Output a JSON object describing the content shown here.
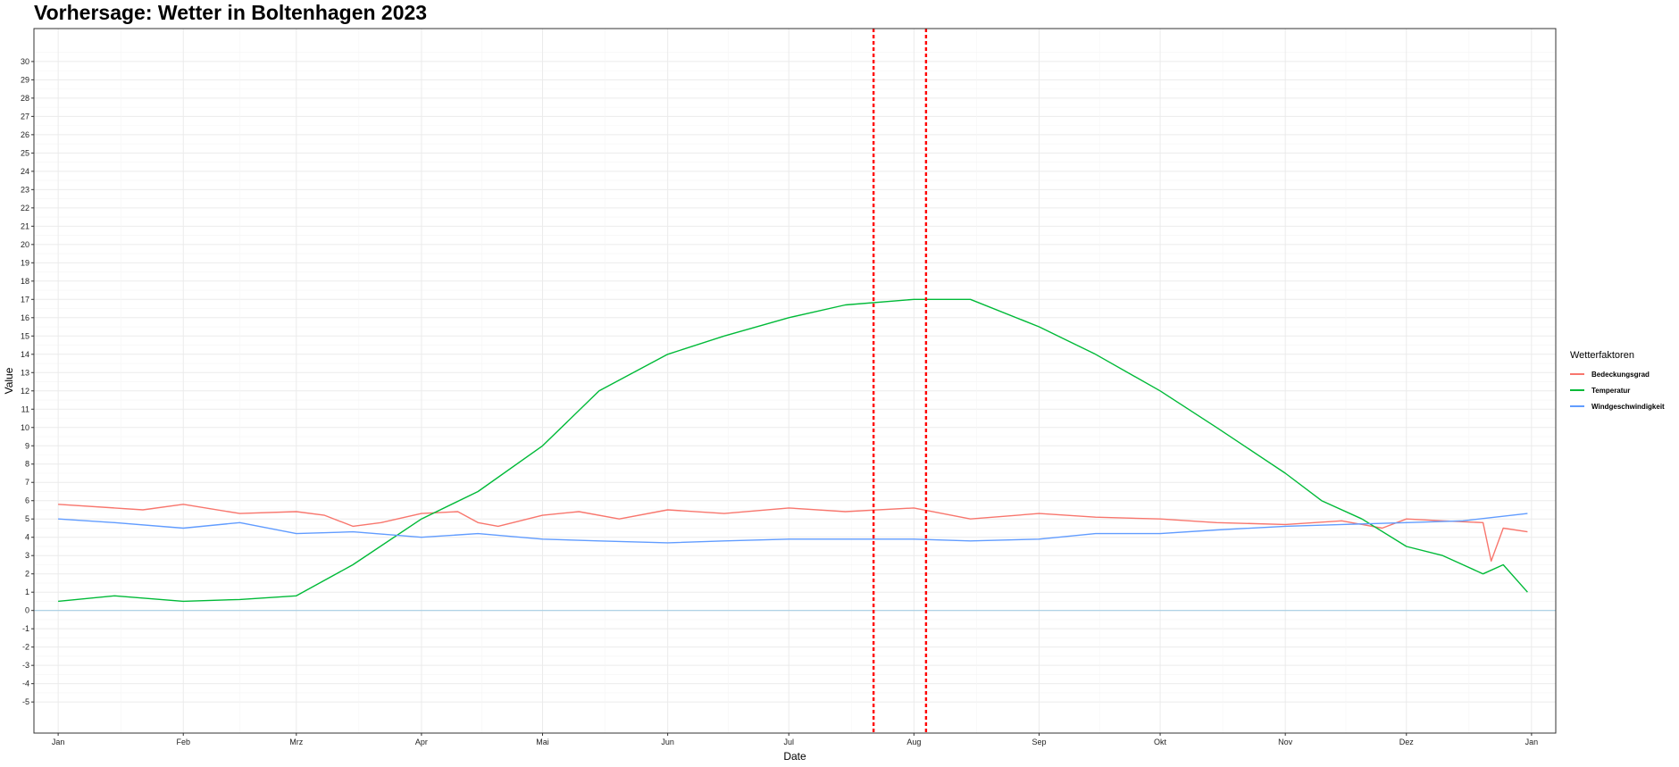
{
  "chart_data": {
    "type": "line",
    "title": "Vorhersage: Wetter in Boltenhagen 2023",
    "xlabel": "Date",
    "ylabel": "Value",
    "ylim": [
      -6.7,
      31.8
    ],
    "xlim_days": [
      -6,
      371
    ],
    "y_ticks": [
      -5,
      -4,
      -3,
      -2,
      -1,
      0,
      1,
      2,
      3,
      4,
      5,
      6,
      7,
      8,
      9,
      10,
      11,
      12,
      13,
      14,
      15,
      16,
      17,
      18,
      19,
      20,
      21,
      22,
      23,
      24,
      25,
      26,
      27,
      28,
      29,
      30
    ],
    "x_ticks": [
      "Jan",
      "Feb",
      "Mrz",
      "Apr",
      "Mai",
      "Jun",
      "Jul",
      "Aug",
      "Sep",
      "Okt",
      "Nov",
      "Dez",
      "Jan"
    ],
    "x_tick_days": [
      0,
      31,
      59,
      90,
      120,
      151,
      181,
      212,
      243,
      273,
      304,
      334,
      365
    ],
    "grid": true,
    "hline": 0,
    "vlines": [
      "2023-07-22",
      "2023-08-04"
    ],
    "legend_position": "right",
    "legend_title": "Wetterfaktoren",
    "series": [
      {
        "name": "Bedeckungsgrad",
        "color": "#F8766D",
        "x": [
          "2023-01-01",
          "2023-01-15",
          "2023-01-22",
          "2023-02-01",
          "2023-02-15",
          "2023-03-01",
          "2023-03-08",
          "2023-03-15",
          "2023-03-22",
          "2023-04-01",
          "2023-04-10",
          "2023-04-15",
          "2023-04-20",
          "2023-05-01",
          "2023-05-10",
          "2023-05-20",
          "2023-06-01",
          "2023-06-15",
          "2023-07-01",
          "2023-07-15",
          "2023-08-01",
          "2023-08-08",
          "2023-08-15",
          "2023-09-01",
          "2023-09-15",
          "2023-10-01",
          "2023-10-15",
          "2023-11-01",
          "2023-11-15",
          "2023-11-25",
          "2023-12-01",
          "2023-12-10",
          "2023-12-20",
          "2023-12-22",
          "2023-12-25",
          "2023-12-31"
        ],
        "values": [
          5.8,
          5.6,
          5.5,
          5.8,
          5.3,
          5.4,
          5.2,
          4.6,
          4.8,
          5.3,
          5.4,
          4.8,
          4.6,
          5.2,
          5.4,
          5.0,
          5.5,
          5.3,
          5.6,
          5.4,
          5.6,
          5.3,
          5.0,
          5.3,
          5.1,
          5.0,
          4.8,
          4.7,
          4.9,
          4.5,
          5.0,
          4.9,
          4.8,
          2.7,
          4.5,
          4.3
        ]
      },
      {
        "name": "Temperatur",
        "color": "#00BA38",
        "x": [
          "2023-01-01",
          "2023-01-15",
          "2023-02-01",
          "2023-02-15",
          "2023-03-01",
          "2023-03-15",
          "2023-04-01",
          "2023-04-15",
          "2023-05-01",
          "2023-05-15",
          "2023-06-01",
          "2023-06-15",
          "2023-07-01",
          "2023-07-15",
          "2023-08-01",
          "2023-08-15",
          "2023-09-01",
          "2023-09-15",
          "2023-10-01",
          "2023-10-15",
          "2023-11-01",
          "2023-11-10",
          "2023-11-20",
          "2023-12-01",
          "2023-12-10",
          "2023-12-20",
          "2023-12-25",
          "2023-12-31"
        ],
        "values": [
          0.5,
          0.8,
          0.5,
          0.6,
          0.8,
          2.5,
          5.0,
          6.5,
          9.0,
          12.0,
          14.0,
          15.0,
          16.0,
          16.7,
          17.0,
          17.0,
          15.5,
          14.0,
          12.0,
          10.0,
          7.5,
          6.0,
          5.0,
          3.5,
          3.0,
          2.0,
          2.5,
          1.0
        ]
      },
      {
        "name": "Windgeschwindigkeit",
        "color": "#619CFF",
        "x": [
          "2023-01-01",
          "2023-01-15",
          "2023-02-01",
          "2023-02-15",
          "2023-03-01",
          "2023-03-15",
          "2023-04-01",
          "2023-04-15",
          "2023-05-01",
          "2023-05-15",
          "2023-06-01",
          "2023-06-15",
          "2023-07-01",
          "2023-07-15",
          "2023-08-01",
          "2023-08-15",
          "2023-09-01",
          "2023-09-15",
          "2023-10-01",
          "2023-10-15",
          "2023-11-01",
          "2023-11-15",
          "2023-12-01",
          "2023-12-15",
          "2023-12-31"
        ],
        "values": [
          5.0,
          4.8,
          4.5,
          4.8,
          4.2,
          4.3,
          4.0,
          4.2,
          3.9,
          3.8,
          3.7,
          3.8,
          3.9,
          3.9,
          3.9,
          3.8,
          3.9,
          4.2,
          4.2,
          4.4,
          4.6,
          4.7,
          4.8,
          4.9,
          5.3
        ]
      }
    ]
  }
}
